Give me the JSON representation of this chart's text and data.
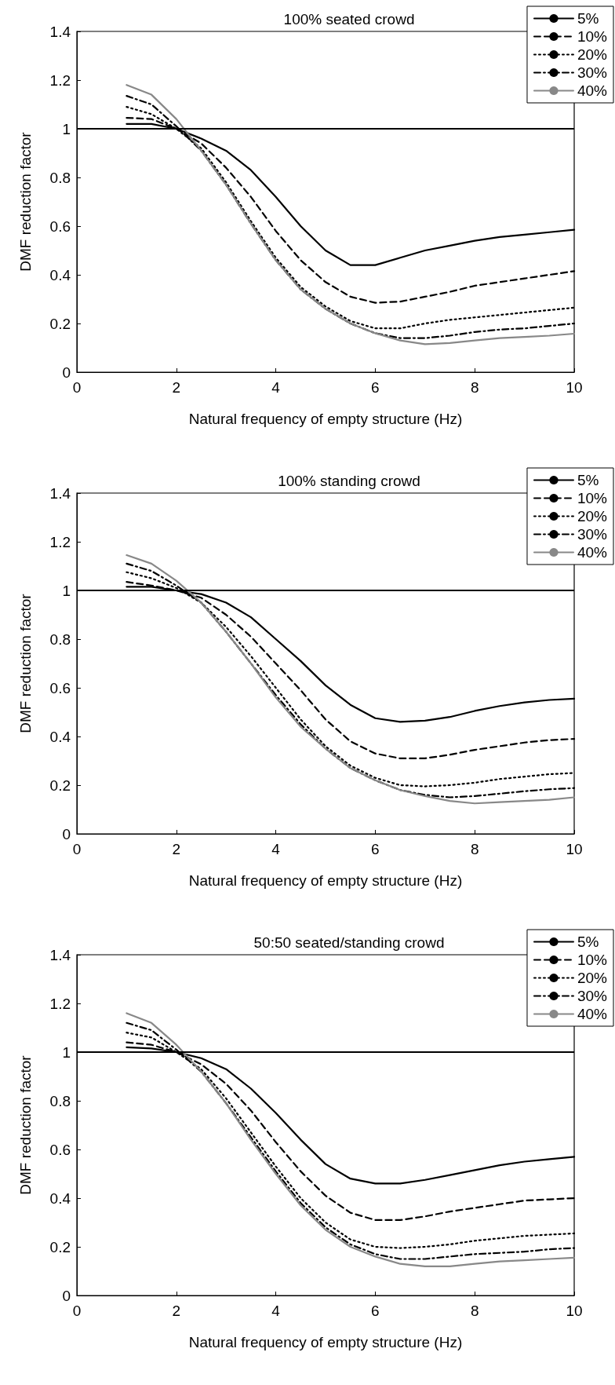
{
  "chart_data": [
    {
      "type": "line",
      "title": "100% seated crowd",
      "xlabel": "Natural frequency of empty structure (Hz)",
      "ylabel": "DMF reduction factor",
      "x": [
        1,
        1.5,
        2,
        2.5,
        3,
        3.5,
        4,
        4.5,
        5,
        5.5,
        6,
        6.5,
        7,
        7.5,
        8,
        8.5,
        9,
        9.5,
        10
      ],
      "xlim": [
        0,
        10
      ],
      "xticks": [
        0,
        2,
        4,
        6,
        8,
        10
      ],
      "ylim": [
        0,
        1.4
      ],
      "yticks": [
        0,
        0.2,
        0.4,
        0.6,
        0.8,
        1,
        1.2,
        1.4
      ],
      "grid": false,
      "legend": "top right",
      "marker": "none",
      "ref_lines": [
        {
          "axis": "y",
          "value": 1,
          "color": "#000000",
          "line_style": "solid"
        }
      ],
      "series": [
        {
          "name": "5%",
          "color": "#000000",
          "line_style": "solid",
          "values": [
            1.02,
            1.02,
            1.0,
            0.96,
            0.91,
            0.83,
            0.72,
            0.6,
            0.5,
            0.44,
            0.44,
            0.47,
            0.5,
            0.52,
            0.54,
            0.555,
            0.565,
            0.575,
            0.585
          ]
        },
        {
          "name": "10%",
          "color": "#000000",
          "line_style": "dashed",
          "values": [
            1.045,
            1.04,
            1.0,
            0.94,
            0.84,
            0.72,
            0.58,
            0.46,
            0.37,
            0.31,
            0.285,
            0.29,
            0.31,
            0.33,
            0.355,
            0.37,
            0.385,
            0.4,
            0.415
          ]
        },
        {
          "name": "20%",
          "color": "#000000",
          "line_style": "dotted",
          "values": [
            1.09,
            1.06,
            1.0,
            0.92,
            0.78,
            0.62,
            0.47,
            0.35,
            0.27,
            0.21,
            0.18,
            0.18,
            0.2,
            0.215,
            0.225,
            0.235,
            0.245,
            0.255,
            0.265
          ]
        },
        {
          "name": "30%",
          "color": "#000000",
          "line_style": "dashdot",
          "values": [
            1.135,
            1.1,
            1.01,
            0.91,
            0.77,
            0.61,
            0.46,
            0.34,
            0.26,
            0.2,
            0.16,
            0.14,
            0.14,
            0.15,
            0.165,
            0.175,
            0.18,
            0.19,
            0.2
          ]
        },
        {
          "name": "40%",
          "color": "#888888",
          "line_style": "solid",
          "values": [
            1.18,
            1.14,
            1.04,
            0.91,
            0.77,
            0.61,
            0.46,
            0.34,
            0.26,
            0.2,
            0.16,
            0.13,
            0.115,
            0.12,
            0.13,
            0.14,
            0.145,
            0.15,
            0.158
          ]
        }
      ]
    },
    {
      "type": "line",
      "title": "100% standing crowd",
      "xlabel": "Natural frequency of empty structure (Hz)",
      "ylabel": "DMF reduction factor",
      "x": [
        1,
        1.5,
        2,
        2.5,
        3,
        3.5,
        4,
        4.5,
        5,
        5.5,
        6,
        6.5,
        7,
        7.5,
        8,
        8.5,
        9,
        9.5,
        10
      ],
      "xlim": [
        0,
        10
      ],
      "xticks": [
        0,
        2,
        4,
        6,
        8,
        10
      ],
      "ylim": [
        0,
        1.4
      ],
      "yticks": [
        0,
        0.2,
        0.4,
        0.6,
        0.8,
        1,
        1.2,
        1.4
      ],
      "grid": false,
      "legend": "top right",
      "marker": "none",
      "ref_lines": [
        {
          "axis": "y",
          "value": 1,
          "color": "#000000",
          "line_style": "solid"
        }
      ],
      "series": [
        {
          "name": "5%",
          "color": "#000000",
          "line_style": "solid",
          "values": [
            1.015,
            1.015,
            1.0,
            0.985,
            0.95,
            0.89,
            0.8,
            0.71,
            0.61,
            0.53,
            0.475,
            0.46,
            0.465,
            0.48,
            0.505,
            0.525,
            0.54,
            0.55,
            0.555
          ]
        },
        {
          "name": "10%",
          "color": "#000000",
          "line_style": "dashed",
          "values": [
            1.035,
            1.02,
            1.0,
            0.97,
            0.9,
            0.81,
            0.7,
            0.59,
            0.47,
            0.38,
            0.33,
            0.31,
            0.31,
            0.325,
            0.345,
            0.36,
            0.375,
            0.385,
            0.39
          ]
        },
        {
          "name": "20%",
          "color": "#000000",
          "line_style": "dotted",
          "values": [
            1.075,
            1.05,
            1.01,
            0.95,
            0.85,
            0.73,
            0.6,
            0.47,
            0.36,
            0.28,
            0.23,
            0.2,
            0.195,
            0.2,
            0.21,
            0.225,
            0.235,
            0.245,
            0.25
          ]
        },
        {
          "name": "30%",
          "color": "#000000",
          "line_style": "dashdot",
          "values": [
            1.11,
            1.08,
            1.02,
            0.95,
            0.83,
            0.7,
            0.57,
            0.45,
            0.35,
            0.27,
            0.22,
            0.18,
            0.16,
            0.15,
            0.155,
            0.165,
            0.175,
            0.183,
            0.188
          ]
        },
        {
          "name": "40%",
          "color": "#888888",
          "line_style": "solid",
          "values": [
            1.145,
            1.11,
            1.04,
            0.95,
            0.83,
            0.7,
            0.56,
            0.44,
            0.35,
            0.27,
            0.22,
            0.18,
            0.155,
            0.135,
            0.125,
            0.13,
            0.135,
            0.14,
            0.15
          ]
        }
      ]
    },
    {
      "type": "line",
      "title": "50:50 seated/standing crowd",
      "xlabel": "Natural frequency of empty structure (Hz)",
      "ylabel": "DMF reduction factor",
      "x": [
        1,
        1.5,
        2,
        2.5,
        3,
        3.5,
        4,
        4.5,
        5,
        5.5,
        6,
        6.5,
        7,
        7.5,
        8,
        8.5,
        9,
        9.5,
        10
      ],
      "xlim": [
        0,
        10
      ],
      "xticks": [
        0,
        2,
        4,
        6,
        8,
        10
      ],
      "ylim": [
        0,
        1.4
      ],
      "yticks": [
        0,
        0.2,
        0.4,
        0.6,
        0.8,
        1,
        1.2,
        1.4
      ],
      "grid": false,
      "legend": "top right",
      "marker": "none",
      "ref_lines": [
        {
          "axis": "y",
          "value": 1,
          "color": "#000000",
          "line_style": "solid"
        }
      ],
      "series": [
        {
          "name": "5%",
          "color": "#000000",
          "line_style": "solid",
          "values": [
            1.02,
            1.015,
            1.0,
            0.975,
            0.93,
            0.85,
            0.75,
            0.64,
            0.54,
            0.48,
            0.46,
            0.46,
            0.475,
            0.495,
            0.515,
            0.535,
            0.55,
            0.56,
            0.57
          ]
        },
        {
          "name": "10%",
          "color": "#000000",
          "line_style": "dashed",
          "values": [
            1.04,
            1.03,
            1.0,
            0.95,
            0.87,
            0.76,
            0.63,
            0.51,
            0.41,
            0.34,
            0.31,
            0.31,
            0.325,
            0.345,
            0.36,
            0.375,
            0.39,
            0.395,
            0.4
          ]
        },
        {
          "name": "20%",
          "color": "#000000",
          "line_style": "dotted",
          "values": [
            1.08,
            1.06,
            1.0,
            0.93,
            0.81,
            0.67,
            0.53,
            0.4,
            0.3,
            0.23,
            0.2,
            0.195,
            0.2,
            0.21,
            0.225,
            0.235,
            0.245,
            0.25,
            0.255
          ]
        },
        {
          "name": "30%",
          "color": "#000000",
          "line_style": "dashdot",
          "values": [
            1.12,
            1.09,
            1.01,
            0.92,
            0.79,
            0.65,
            0.51,
            0.38,
            0.28,
            0.21,
            0.17,
            0.15,
            0.15,
            0.16,
            0.17,
            0.175,
            0.18,
            0.19,
            0.195
          ]
        },
        {
          "name": "40%",
          "color": "#888888",
          "line_style": "solid",
          "values": [
            1.16,
            1.12,
            1.03,
            0.92,
            0.79,
            0.64,
            0.5,
            0.37,
            0.27,
            0.2,
            0.16,
            0.13,
            0.12,
            0.12,
            0.13,
            0.14,
            0.145,
            0.15,
            0.155
          ]
        }
      ]
    }
  ]
}
